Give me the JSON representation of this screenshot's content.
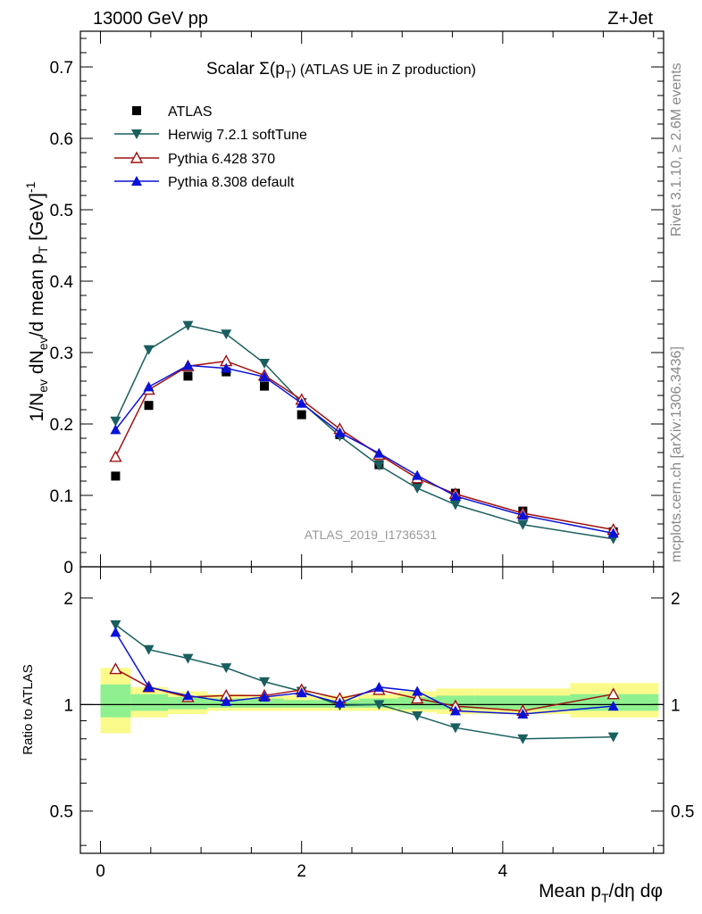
{
  "header": {
    "energy_label": "13000 GeV pp",
    "process_label": "Z+Jet"
  },
  "side_labels": {
    "rivet": "Rivet 3.1.10, ≥ 2.6M events",
    "mcplots": "mcplots.cern.ch [arXiv:1306.3436]"
  },
  "chart_data": [
    {
      "type": "scatter",
      "title_main": "Scalar Σ(p",
      "title_sub": "T",
      "title_rest": ") (ATLAS UE in Z production)",
      "ylabel": "1/N_ev dN_ev/d mean p_T [GeV]^-1",
      "xlim": [
        -0.2,
        5.6
      ],
      "ylim": [
        0,
        0.75
      ],
      "yticks": [
        "0",
        "0.1",
        "0.2",
        "0.3",
        "0.4",
        "0.5",
        "0.6",
        "0.7"
      ],
      "watermark": "ATLAS_2019_I1736531",
      "legend_position": "top-left",
      "x": [
        0.15,
        0.48,
        0.87,
        1.25,
        1.63,
        2.0,
        2.38,
        2.77,
        3.15,
        3.53,
        4.2,
        5.1
      ],
      "series": [
        {
          "name": "ATLAS",
          "color": "#000000",
          "marker": "square",
          "line": false,
          "values": [
            0.127,
            0.226,
            0.267,
            0.273,
            0.253,
            0.213,
            0.185,
            0.143,
            0.119,
            0.103,
            0.078,
            0.049
          ]
        },
        {
          "name": "Herwig 7.2.1 softTune",
          "color": "#1a5f5f",
          "marker": "triangle-down",
          "line": true,
          "values": [
            0.204,
            0.304,
            0.338,
            0.326,
            0.285,
            0.23,
            0.183,
            0.142,
            0.11,
            0.087,
            0.059,
            0.039
          ]
        },
        {
          "name": "Pythia 6.428 370",
          "color": "#a01010",
          "marker": "triangle-up-open",
          "line": true,
          "values": [
            0.154,
            0.248,
            0.281,
            0.288,
            0.268,
            0.234,
            0.193,
            0.157,
            0.124,
            0.102,
            0.075,
            0.052
          ]
        },
        {
          "name": "Pythia 8.308 default",
          "color": "#0a12d8",
          "marker": "triangle-up",
          "line": true,
          "values": [
            0.192,
            0.252,
            0.282,
            0.278,
            0.266,
            0.229,
            0.188,
            0.159,
            0.128,
            0.099,
            0.072,
            0.047
          ]
        }
      ]
    },
    {
      "type": "scatter",
      "ylabel": "Ratio to ATLAS",
      "xlabel": "Mean p_T/dη dφ",
      "xlim": [
        -0.2,
        5.6
      ],
      "ylim": [
        0.38,
        2.45
      ],
      "xticks": [
        "0",
        "2",
        "4"
      ],
      "yticks": [
        "0.5",
        "1",
        "2"
      ],
      "x": [
        0.15,
        0.48,
        0.87,
        1.25,
        1.63,
        2.0,
        2.38,
        2.77,
        3.15,
        3.53,
        4.2,
        5.1
      ],
      "bands": {
        "edges": [
          0.0,
          0.3,
          0.67,
          1.06,
          1.44,
          1.82,
          2.19,
          2.57,
          2.96,
          3.34,
          3.72,
          4.67,
          5.55
        ],
        "green": [
          [
            0.92,
            1.14
          ],
          [
            0.96,
            1.07
          ],
          [
            0.97,
            1.05
          ],
          [
            0.98,
            1.04
          ],
          [
            0.98,
            1.04
          ],
          [
            0.98,
            1.03
          ],
          [
            0.98,
            1.03
          ],
          [
            0.98,
            1.04
          ],
          [
            0.97,
            1.05
          ],
          [
            0.97,
            1.06
          ],
          [
            0.97,
            1.06
          ],
          [
            0.96,
            1.07
          ]
        ],
        "yellow": [
          [
            0.83,
            1.27
          ],
          [
            0.92,
            1.12
          ],
          [
            0.94,
            1.09
          ],
          [
            0.96,
            1.07
          ],
          [
            0.96,
            1.06
          ],
          [
            0.96,
            1.06
          ],
          [
            0.96,
            1.06
          ],
          [
            0.96,
            1.07
          ],
          [
            0.95,
            1.09
          ],
          [
            0.94,
            1.11
          ],
          [
            0.94,
            1.11
          ],
          [
            0.92,
            1.15
          ]
        ]
      },
      "series": [
        {
          "name": "Herwig 7.2.1 softTune",
          "color": "#1a5f5f",
          "marker": "triangle-down",
          "values": [
            1.68,
            1.43,
            1.35,
            1.27,
            1.16,
            1.09,
            0.995,
            1.0,
            0.93,
            0.86,
            0.8,
            0.81
          ]
        },
        {
          "name": "Pythia 6.428 370",
          "color": "#a01010",
          "marker": "triangle-up-open",
          "values": [
            1.26,
            1.12,
            1.05,
            1.06,
            1.06,
            1.1,
            1.04,
            1.1,
            1.04,
            0.99,
            0.96,
            1.07
          ]
        },
        {
          "name": "Pythia 8.308 default",
          "color": "#0a12d8",
          "marker": "triangle-up",
          "values": [
            1.6,
            1.12,
            1.06,
            1.02,
            1.05,
            1.08,
            1.01,
            1.12,
            1.09,
            0.96,
            0.94,
            0.99
          ]
        }
      ]
    }
  ]
}
